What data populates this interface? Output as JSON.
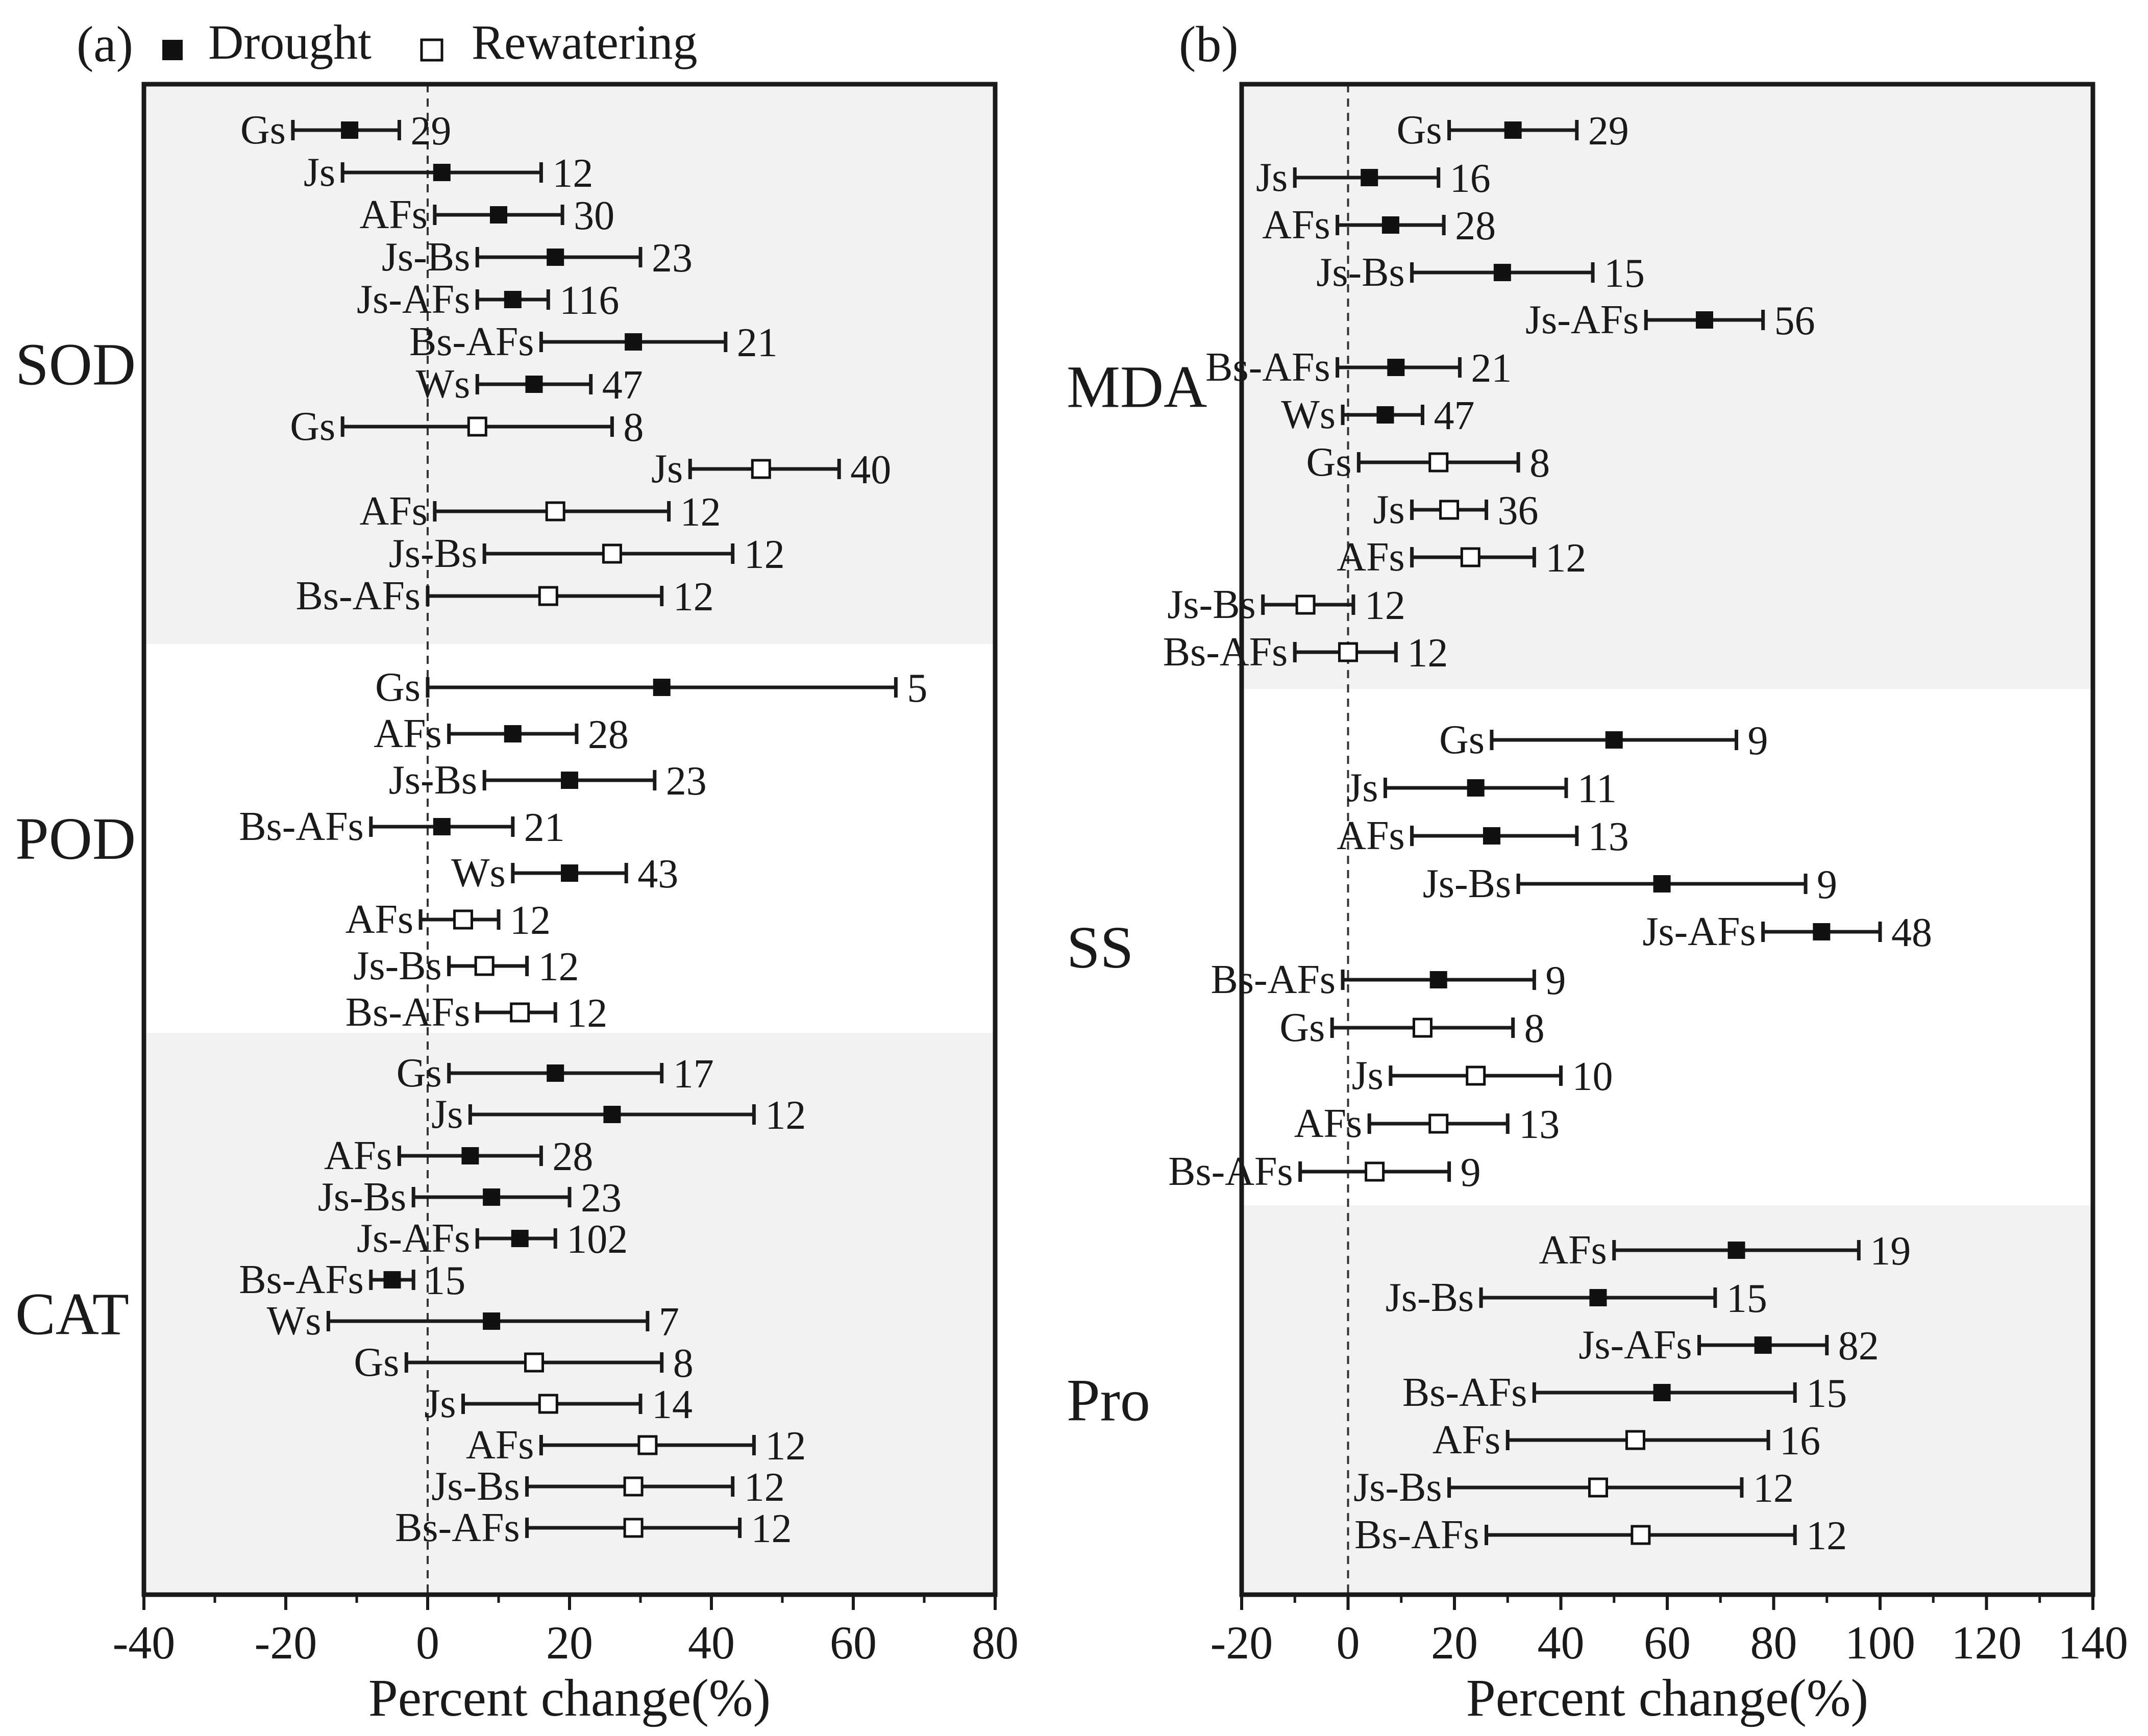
{
  "legend": {
    "drought_label": "Drought",
    "rewatering_label": "Rewatering"
  },
  "chart_data": [
    {
      "type": "forest-plot",
      "panel_label": "(a)",
      "xlabel": "Percent change(%)",
      "xlim": [
        -40,
        80
      ],
      "xticks": [
        -40,
        -20,
        0,
        20,
        40,
        60,
        80
      ],
      "groups": [
        {
          "name": "SOD",
          "shaded": true,
          "rows": [
            {
              "label": "Gs",
              "treatment": "Drought",
              "mean": -11,
              "low": -19,
              "high": -4,
              "n": "29"
            },
            {
              "label": "Js",
              "treatment": "Drought",
              "mean": 2,
              "low": -12,
              "high": 16,
              "n": "12"
            },
            {
              "label": "AFs",
              "treatment": "Drought",
              "mean": 10,
              "low": 1,
              "high": 19,
              "n": "30"
            },
            {
              "label": "Js-Bs",
              "treatment": "Drought",
              "mean": 18,
              "low": 7,
              "high": 30,
              "n": "23"
            },
            {
              "label": "Js-AFs",
              "treatment": "Drought",
              "mean": 12,
              "low": 7,
              "high": 17,
              "n": "116"
            },
            {
              "label": "Bs-AFs",
              "treatment": "Drought",
              "mean": 29,
              "low": 16,
              "high": 42,
              "n": "21"
            },
            {
              "label": "Ws",
              "treatment": "Drought",
              "mean": 15,
              "low": 7,
              "high": 23,
              "n": "47"
            },
            {
              "label": "Gs",
              "treatment": "Rewatering",
              "mean": 7,
              "low": -12,
              "high": 26,
              "n": "8"
            },
            {
              "label": "Js",
              "treatment": "Rewatering",
              "mean": 47,
              "low": 37,
              "high": 58,
              "n": "40"
            },
            {
              "label": "AFs",
              "treatment": "Rewatering",
              "mean": 18,
              "low": 1,
              "high": 34,
              "n": "12"
            },
            {
              "label": "Js-Bs",
              "treatment": "Rewatering",
              "mean": 26,
              "low": 8,
              "high": 43,
              "n": "12"
            },
            {
              "label": "Bs-AFs",
              "treatment": "Rewatering",
              "mean": 17,
              "low": 0,
              "high": 33,
              "n": "12"
            }
          ]
        },
        {
          "name": "POD",
          "shaded": false,
          "rows": [
            {
              "label": "Gs",
              "treatment": "Drought",
              "mean": 33,
              "low": 0,
              "high": 66,
              "n": "5"
            },
            {
              "label": "AFs",
              "treatment": "Drought",
              "mean": 12,
              "low": 3,
              "high": 21,
              "n": "28"
            },
            {
              "label": "Js-Bs",
              "treatment": "Drought",
              "mean": 20,
              "low": 8,
              "high": 32,
              "n": "23"
            },
            {
              "label": "Bs-AFs",
              "treatment": "Drought",
              "mean": 2,
              "low": -8,
              "high": 12,
              "n": "21"
            },
            {
              "label": "Ws",
              "treatment": "Drought",
              "mean": 20,
              "low": 12,
              "high": 28,
              "n": "43"
            },
            {
              "label": "AFs",
              "treatment": "Rewatering",
              "mean": 5,
              "low": -1,
              "high": 10,
              "n": "12"
            },
            {
              "label": "Js-Bs",
              "treatment": "Rewatering",
              "mean": 8,
              "low": 3,
              "high": 14,
              "n": "12"
            },
            {
              "label": "Bs-AFs",
              "treatment": "Rewatering",
              "mean": 13,
              "low": 7,
              "high": 18,
              "n": "12"
            }
          ]
        },
        {
          "name": "CAT",
          "shaded": true,
          "rows": [
            {
              "label": "Gs",
              "treatment": "Drought",
              "mean": 18,
              "low": 3,
              "high": 33,
              "n": "17"
            },
            {
              "label": "Js",
              "treatment": "Drought",
              "mean": 26,
              "low": 6,
              "high": 46,
              "n": "12"
            },
            {
              "label": "AFs",
              "treatment": "Drought",
              "mean": 6,
              "low": -4,
              "high": 16,
              "n": "28"
            },
            {
              "label": "Js-Bs",
              "treatment": "Drought",
              "mean": 9,
              "low": -2,
              "high": 20,
              "n": "23"
            },
            {
              "label": "Js-AFs",
              "treatment": "Drought",
              "mean": 13,
              "low": 7,
              "high": 18,
              "n": "102"
            },
            {
              "label": "Bs-AFs",
              "treatment": "Drought",
              "mean": -5,
              "low": -8,
              "high": -2,
              "n": "15"
            },
            {
              "label": "Ws",
              "treatment": "Drought",
              "mean": 9,
              "low": -14,
              "high": 31,
              "n": "7"
            },
            {
              "label": "Gs",
              "treatment": "Rewatering",
              "mean": 15,
              "low": -3,
              "high": 33,
              "n": "8"
            },
            {
              "label": "Js",
              "treatment": "Rewatering",
              "mean": 17,
              "low": 5,
              "high": 30,
              "n": "14"
            },
            {
              "label": "AFs",
              "treatment": "Rewatering",
              "mean": 31,
              "low": 16,
              "high": 46,
              "n": "12"
            },
            {
              "label": "Js-Bs",
              "treatment": "Rewatering",
              "mean": 29,
              "low": 14,
              "high": 43,
              "n": "12"
            },
            {
              "label": "Bs-AFs",
              "treatment": "Rewatering",
              "mean": 29,
              "low": 14,
              "high": 44,
              "n": "12"
            }
          ]
        }
      ]
    },
    {
      "type": "forest-plot",
      "panel_label": "(b)",
      "xlabel": "Percent change(%)",
      "xlim": [
        -20,
        140
      ],
      "xticks": [
        -20,
        0,
        20,
        40,
        60,
        80,
        100,
        120,
        140
      ],
      "groups": [
        {
          "name": "MDA",
          "shaded": true,
          "rows": [
            {
              "label": "Gs",
              "treatment": "Drought",
              "mean": 31,
              "low": 19,
              "high": 43,
              "n": "29"
            },
            {
              "label": "Js",
              "treatment": "Drought",
              "mean": 4,
              "low": -10,
              "high": 17,
              "n": "16"
            },
            {
              "label": "AFs",
              "treatment": "Drought",
              "mean": 8,
              "low": -2,
              "high": 18,
              "n": "28"
            },
            {
              "label": "Js-Bs",
              "treatment": "Drought",
              "mean": 29,
              "low": 12,
              "high": 46,
              "n": "15"
            },
            {
              "label": "Js-AFs",
              "treatment": "Drought",
              "mean": 67,
              "low": 56,
              "high": 78,
              "n": "56"
            },
            {
              "label": "Bs-AFs",
              "treatment": "Drought",
              "mean": 9,
              "low": -2,
              "high": 21,
              "n": "21"
            },
            {
              "label": "Ws",
              "treatment": "Drought",
              "mean": 7,
              "low": -1,
              "high": 14,
              "n": "47"
            },
            {
              "label": "Gs",
              "treatment": "Rewatering",
              "mean": 17,
              "low": 2,
              "high": 32,
              "n": "8"
            },
            {
              "label": "Js",
              "treatment": "Rewatering",
              "mean": 19,
              "low": 12,
              "high": 26,
              "n": "36"
            },
            {
              "label": "AFs",
              "treatment": "Rewatering",
              "mean": 23,
              "low": 12,
              "high": 35,
              "n": "12"
            },
            {
              "label": "Js-Bs",
              "treatment": "Rewatering",
              "mean": -8,
              "low": -16,
              "high": 1,
              "n": "12"
            },
            {
              "label": "Bs-AFs",
              "treatment": "Rewatering",
              "mean": 0,
              "low": -10,
              "high": 9,
              "n": "12"
            }
          ]
        },
        {
          "name": "SS",
          "shaded": false,
          "rows": [
            {
              "label": "Gs",
              "treatment": "Drought",
              "mean": 50,
              "low": 27,
              "high": 73,
              "n": "9"
            },
            {
              "label": "Js",
              "treatment": "Drought",
              "mean": 24,
              "low": 7,
              "high": 41,
              "n": "11"
            },
            {
              "label": "AFs",
              "treatment": "Drought",
              "mean": 27,
              "low": 12,
              "high": 43,
              "n": "13"
            },
            {
              "label": "Js-Bs",
              "treatment": "Drought",
              "mean": 59,
              "low": 32,
              "high": 86,
              "n": "9"
            },
            {
              "label": "Js-AFs",
              "treatment": "Drought",
              "mean": 89,
              "low": 78,
              "high": 100,
              "n": "48"
            },
            {
              "label": "Bs-AFs",
              "treatment": "Drought",
              "mean": 17,
              "low": -1,
              "high": 35,
              "n": "9"
            },
            {
              "label": "Gs",
              "treatment": "Rewatering",
              "mean": 14,
              "low": -3,
              "high": 31,
              "n": "8"
            },
            {
              "label": "Js",
              "treatment": "Rewatering",
              "mean": 24,
              "low": 8,
              "high": 40,
              "n": "10"
            },
            {
              "label": "AFs",
              "treatment": "Rewatering",
              "mean": 17,
              "low": 4,
              "high": 30,
              "n": "13"
            },
            {
              "label": "Bs-AFs",
              "treatment": "Rewatering",
              "mean": 5,
              "low": -9,
              "high": 19,
              "n": "9"
            }
          ]
        },
        {
          "name": "Pro",
          "shaded": true,
          "rows": [
            {
              "label": "AFs",
              "treatment": "Drought",
              "mean": 73,
              "low": 50,
              "high": 96,
              "n": "19"
            },
            {
              "label": "Js-Bs",
              "treatment": "Drought",
              "mean": 47,
              "low": 25,
              "high": 69,
              "n": "15"
            },
            {
              "label": "Js-AFs",
              "treatment": "Drought",
              "mean": 78,
              "low": 66,
              "high": 90,
              "n": "82"
            },
            {
              "label": "Bs-AFs",
              "treatment": "Drought",
              "mean": 59,
              "low": 35,
              "high": 84,
              "n": "15"
            },
            {
              "label": "AFs",
              "treatment": "Rewatering",
              "mean": 54,
              "low": 30,
              "high": 79,
              "n": "16"
            },
            {
              "label": "Js-Bs",
              "treatment": "Rewatering",
              "mean": 47,
              "low": 19,
              "high": 74,
              "n": "12"
            },
            {
              "label": "Bs-AFs",
              "treatment": "Rewatering",
              "mean": 55,
              "low": 26,
              "high": 84,
              "n": "12"
            }
          ]
        }
      ]
    }
  ]
}
